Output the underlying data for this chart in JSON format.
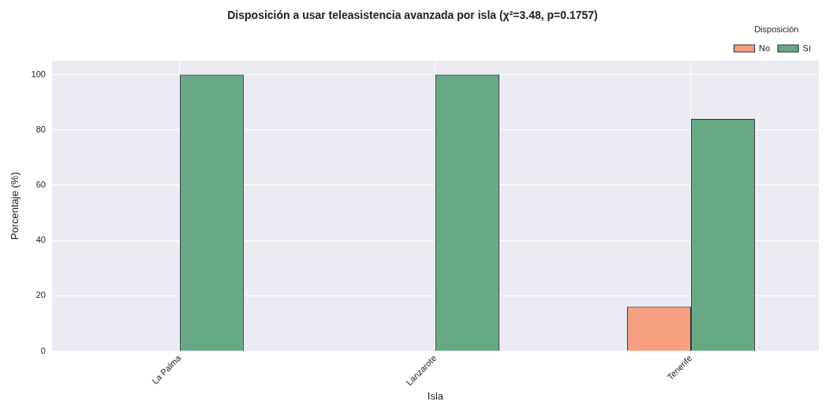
{
  "chart_data": {
    "type": "bar",
    "title": "Disposición a usar teleasistencia avanzada por isla (χ²=3.48, p=0.1757)",
    "xlabel": "Isla",
    "ylabel": "Porcentaje (%)",
    "legend_title": "Disposición",
    "categories": [
      "La Palma",
      "Lanzarote",
      "Tenerife"
    ],
    "series": [
      {
        "name": "No",
        "color": "#f6a07f",
        "values": [
          0,
          0,
          16
        ]
      },
      {
        "name": "Sí",
        "color": "#66a884",
        "values": [
          100,
          100,
          84
        ]
      }
    ],
    "ylim": [
      0,
      105
    ],
    "yticks": [
      0,
      20,
      40,
      60,
      80,
      100
    ],
    "grid": true,
    "legend": "top right"
  }
}
